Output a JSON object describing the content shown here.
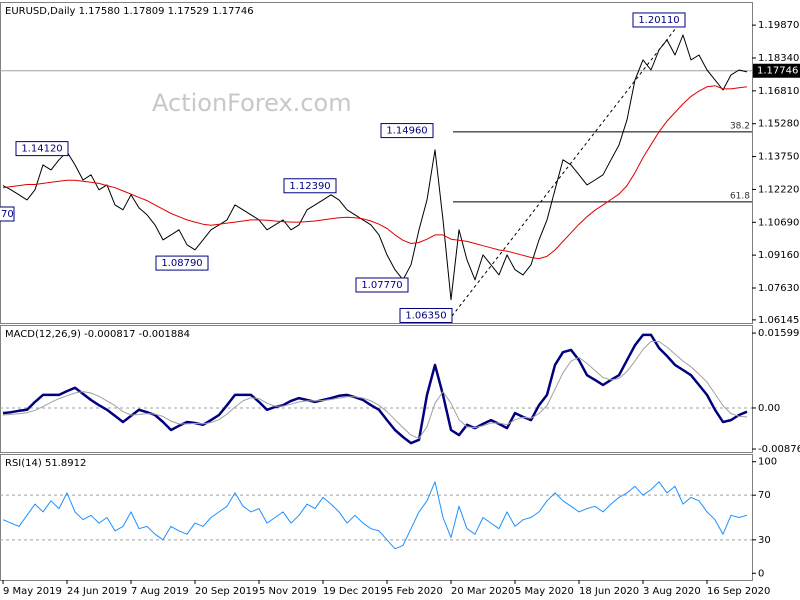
{
  "chart_data": [
    {
      "type": "price",
      "title": "EURUSD,Daily 1.17580 1.17809 1.17529 1.17746",
      "watermark": "ActionForex.com",
      "categories": [
        "9 May 2019",
        null,
        null,
        null,
        null,
        null,
        null,
        null,
        "24 Jun 2019",
        null,
        null,
        null,
        null,
        null,
        null,
        null,
        "7 Aug 2019",
        null,
        null,
        null,
        null,
        null,
        null,
        null,
        "20 Sep 2019",
        null,
        null,
        null,
        null,
        null,
        null,
        null,
        "5 Nov 2019",
        null,
        null,
        null,
        null,
        null,
        null,
        null,
        "19 Dec 2019",
        null,
        null,
        null,
        null,
        null,
        null,
        null,
        "5 Feb 2020",
        null,
        null,
        null,
        null,
        null,
        null,
        null,
        "20 Mar 2020",
        null,
        null,
        null,
        null,
        null,
        null,
        null,
        "5 May 2020",
        null,
        null,
        null,
        null,
        null,
        null,
        null,
        "18 Jun 2020",
        null,
        null,
        null,
        null,
        null,
        null,
        null,
        "3 Aug 2020",
        null,
        null,
        null,
        null,
        null,
        null,
        null,
        "16 Sep 2020",
        null,
        null,
        null,
        null,
        null
      ],
      "series": [
        {
          "color": "#000000",
          "values": [
            1.124,
            1.122,
            1.1197,
            1.1173,
            1.122,
            1.1336,
            1.1313,
            1.136,
            1.1397,
            1.1336,
            1.1266,
            1.129,
            1.122,
            1.1243,
            1.115,
            1.1127,
            1.1197,
            1.1136,
            1.1104,
            1.1057,
            1.0987,
            1.101,
            1.1034,
            1.0964,
            1.0941,
            1.0987,
            1.1034,
            1.1057,
            1.108,
            1.115,
            1.1127,
            1.1104,
            1.108,
            1.1034,
            1.1057,
            1.108,
            1.1034,
            1.1057,
            1.1127,
            1.115,
            1.1173,
            1.1197,
            1.1173,
            1.1127,
            1.1104,
            1.108,
            1.1057,
            1.101,
            1.0917,
            1.0848,
            1.0801,
            1.0871,
            1.1034,
            1.1173,
            1.1406,
            1.108,
            1.0708,
            1.1034,
            1.0894,
            1.0801,
            1.0917,
            1.0871,
            1.0824,
            1.0917,
            1.0848,
            1.0824,
            1.0871,
            1.0987,
            1.108,
            1.122,
            1.136,
            1.1336,
            1.129,
            1.1243,
            1.1266,
            1.129,
            1.136,
            1.1429,
            1.1546,
            1.1732,
            1.1825,
            1.1778,
            1.1871,
            1.1918,
            1.1848,
            1.1941,
            1.1825,
            1.1848,
            1.1778,
            1.1732,
            1.1685,
            1.1755,
            1.1778,
            1.1769
          ]
        },
        {
          "color": "#e00000",
          "values": [
            1.123,
            1.1235,
            1.124,
            1.1245,
            1.1245,
            1.125,
            1.1255,
            1.126,
            1.1265,
            1.1265,
            1.126,
            1.1255,
            1.125,
            1.124,
            1.123,
            1.1215,
            1.12,
            1.1185,
            1.117,
            1.115,
            1.113,
            1.111,
            1.1095,
            1.108,
            1.107,
            1.106,
            1.1055,
            1.106,
            1.1065,
            1.107,
            1.1075,
            1.108,
            1.108,
            1.1078,
            1.1075,
            1.1072,
            1.107,
            1.107,
            1.1072,
            1.1075,
            1.108,
            1.1085,
            1.109,
            1.1092,
            1.109,
            1.1085,
            1.1075,
            1.106,
            1.104,
            1.101,
            1.0985,
            1.097,
            1.0975,
            1.099,
            1.101,
            1.101,
            1.099,
            1.0985,
            1.098,
            1.097,
            1.096,
            1.095,
            1.094,
            1.0935,
            1.0925,
            1.0915,
            1.0905,
            1.09,
            1.091,
            1.094,
            1.098,
            1.102,
            1.106,
            1.1095,
            1.1125,
            1.115,
            1.1175,
            1.12,
            1.124,
            1.13,
            1.137,
            1.143,
            1.149,
            1.154,
            1.158,
            1.162,
            1.1655,
            1.168,
            1.17,
            1.1705,
            1.169,
            1.169,
            1.1695,
            1.17
          ]
        }
      ],
      "ylim": [
        1.06,
        1.209
      ],
      "yticks": [
        {
          "value": 1.1987,
          "label": "1.19870"
        },
        {
          "value": 1.1834,
          "label": "1.18340"
        },
        {
          "value": 1.1681,
          "label": "1.16810"
        },
        {
          "value": 1.1528,
          "label": "1.15280"
        },
        {
          "value": 1.1375,
          "label": "1.13750"
        },
        {
          "value": 1.1222,
          "label": "1.12220"
        },
        {
          "value": 1.1069,
          "label": "1.10690"
        },
        {
          "value": 1.0916,
          "label": "1.09160"
        },
        {
          "value": 1.0763,
          "label": "1.07630"
        },
        1.06145
      ],
      "last_price": 1.17746,
      "annotations": [
        {
          "value": 1.2011,
          "label": "1.20110"
        },
        {
          "value": 1.1496,
          "label": "1.14960"
        },
        {
          "value": 1.1412,
          "label": "1.14120"
        },
        {
          "value": 1.1239,
          "label": "1.12390"
        },
        {
          "value": 1.0879,
          "label": "1.08790"
        },
        {
          "value": 1.0777,
          "label": "1.07770"
        },
        {
          "value": 1.0635,
          "label": "1.06350"
        }
      ],
      "clipped_label": "70",
      "fib_levels": [
        {
          "ratio": 38.2,
          "price": 1.149
        },
        {
          "ratio": 61.8,
          "price": 1.1164
        }
      ]
    },
    {
      "type": "line",
      "title": "MACD(12,26,9) -0.000817 -0.001884",
      "series": [
        {
          "color": "#000080",
          "width": 2.5,
          "values": [
            -0.0011,
            -0.0009,
            -0.0006,
            -0.0004,
            0.0013,
            0.0028,
            0.0028,
            0.0028,
            0.0036,
            0.0043,
            0.003,
            0.0017,
            0.0006,
            -0.0004,
            -0.0017,
            -0.003,
            -0.0017,
            -0.0004,
            -0.0009,
            -0.0015,
            -0.003,
            -0.0047,
            -0.0038,
            -0.003,
            -0.0032,
            -0.0036,
            -0.0026,
            -0.0015,
            0.0006,
            0.0028,
            0.0028,
            0.0028,
            0.0013,
            -0.0004,
            0.0002,
            0.0006,
            0.0015,
            0.0021,
            0.0017,
            0.0013,
            0.0017,
            0.0021,
            0.0026,
            0.0028,
            0.0023,
            0.0017,
            0.0006,
            -0.0004,
            -0.0026,
            -0.0047,
            -0.0062,
            -0.0075,
            -0.0068,
            0.0028,
            0.0092,
            0.0028,
            -0.0047,
            -0.0058,
            -0.0036,
            -0.0043,
            -0.0034,
            -0.0026,
            -0.0034,
            -0.0043,
            -0.0011,
            -0.0019,
            -0.0026,
            0.0006,
            0.0028,
            0.0092,
            0.0119,
            0.0124,
            0.0102,
            0.007,
            0.006,
            0.0049,
            0.006,
            0.007,
            0.0102,
            0.0134,
            0.0156,
            0.0156,
            0.0128,
            0.0111,
            0.0092,
            0.0081,
            0.007,
            0.0049,
            0.0028,
            -0.0004,
            -0.003,
            -0.0026,
            -0.0015,
            -0.0008
          ]
        },
        {
          "color": "#a0a0a0",
          "width": 1,
          "values": [
            -0.0015,
            -0.0014,
            -0.0012,
            -0.001,
            -0.0005,
            0.0003,
            0.0012,
            0.002,
            0.0026,
            0.0032,
            0.0035,
            0.0032,
            0.0025,
            0.0015,
            0.0005,
            -0.0008,
            -0.0015,
            -0.0014,
            -0.0012,
            -0.0013,
            -0.0018,
            -0.0028,
            -0.0034,
            -0.0034,
            -0.0033,
            -0.0034,
            -0.0031,
            -0.0025,
            -0.0013,
            0.0002,
            0.0015,
            0.0022,
            0.002,
            0.001,
            0.0004,
            0.0004,
            0.0008,
            0.0013,
            0.0015,
            0.0015,
            0.0016,
            0.0018,
            0.0021,
            0.0024,
            0.0024,
            0.0021,
            0.0015,
            0.0006,
            -0.0008,
            -0.0025,
            -0.0042,
            -0.0058,
            -0.0065,
            -0.004,
            0.001,
            0.0035,
            0.001,
            -0.0025,
            -0.004,
            -0.0042,
            -0.0038,
            -0.0032,
            -0.0032,
            -0.0036,
            -0.0025,
            -0.002,
            -0.0022,
            -0.0012,
            0.0005,
            0.004,
            0.0075,
            0.01,
            0.0108,
            0.0095,
            0.008,
            0.0065,
            0.006,
            0.0063,
            0.0078,
            0.01,
            0.0125,
            0.0142,
            0.0142,
            0.013,
            0.0115,
            0.01,
            0.0088,
            0.0072,
            0.0055,
            0.003,
            0.0005,
            -0.0012,
            -0.0018,
            -0.0019
          ]
        }
      ],
      "ylim": [
        -0.0094,
        0.0175
      ],
      "yticks": [
        0.015991,
        {
          "value": 0,
          "label": "0.00"
        },
        -0.00876
      ],
      "levels": [
        0
      ]
    },
    {
      "type": "line",
      "title": "RSI(14) 51.8912",
      "series": [
        {
          "color": "#1e90ff",
          "width": 1,
          "values": [
            48,
            45,
            42,
            52,
            62,
            55,
            65,
            58,
            72,
            55,
            48,
            52,
            45,
            50,
            38,
            42,
            55,
            40,
            42,
            35,
            30,
            42,
            38,
            35,
            45,
            42,
            50,
            55,
            60,
            72,
            60,
            55,
            58,
            45,
            50,
            55,
            45,
            52,
            62,
            58,
            68,
            62,
            55,
            45,
            52,
            45,
            40,
            38,
            30,
            22,
            25,
            40,
            55,
            65,
            82,
            50,
            32,
            60,
            40,
            35,
            50,
            45,
            40,
            55,
            42,
            48,
            50,
            55,
            65,
            72,
            65,
            60,
            55,
            58,
            60,
            55,
            62,
            68,
            72,
            78,
            70,
            75,
            82,
            72,
            78,
            62,
            68,
            65,
            55,
            48,
            35,
            52,
            50,
            52
          ]
        }
      ],
      "ylim": [
        -6,
        106
      ],
      "yticks": [
        100,
        70,
        30,
        0
      ],
      "levels": [
        70,
        30
      ]
    }
  ]
}
